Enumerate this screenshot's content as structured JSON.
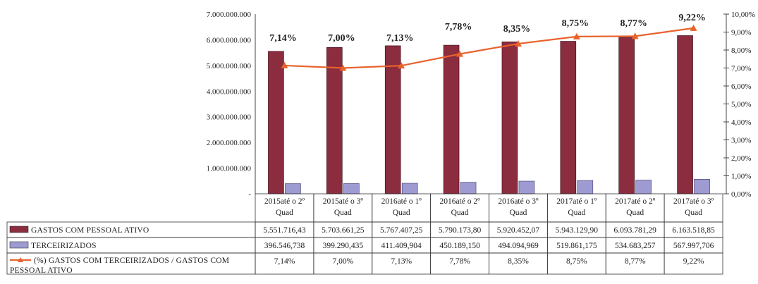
{
  "chart_data": {
    "type": "bar",
    "categories": [
      [
        "2015até o 2º",
        "Quad"
      ],
      [
        "2015até o 3º",
        "Quad"
      ],
      [
        "2016até o 1º",
        "Quad"
      ],
      [
        "2016até o 2º",
        "Quad"
      ],
      [
        "2016até o 3º",
        "Quad"
      ],
      [
        "2017até o 1º",
        "Quad"
      ],
      [
        "2017até o 2º",
        "Quad"
      ],
      [
        "2017até o 3º",
        "Quad"
      ]
    ],
    "series": [
      {
        "name": "GASTOS COM PESSOAL ATIVO",
        "type": "bar",
        "axis": "left",
        "color": "#8b2c3f",
        "values": [
          5551716.43,
          5703661.25,
          5767407.25,
          5790173.8,
          5920452.07,
          5943129.9,
          6093781.29,
          6163518.85
        ],
        "table_values": [
          "5.551.716,43",
          "5.703.661,25",
          "5.767.407,25",
          "5.790.173,80",
          "5.920.452,07",
          "5.943.129,90",
          "6.093.781,29",
          "6.163.518,85"
        ]
      },
      {
        "name": "TERCEIRIZADOS",
        "type": "bar",
        "axis": "left",
        "color": "#9d9bd2",
        "values": [
          396546.738,
          399290.435,
          411409.904,
          450189.15,
          494094.969,
          519861.175,
          534683.257,
          567997.706
        ],
        "table_values": [
          "396.546,738",
          "399.290,435",
          "411.409,904",
          "450.189,150",
          "494.094,969",
          "519.861,175",
          "534.683,257",
          "567.997,706"
        ]
      },
      {
        "name": "(%) GASTOS COM TERCEIRIZADOS / GASTOS COM PESSOAL ATIVO",
        "name_lines": [
          "(%) GASTOS COM TERCEIRIZADOS / GASTOS COM",
          "PESSOAL ATIVO"
        ],
        "type": "line",
        "axis": "right",
        "color": "#e8622c",
        "values": [
          7.14,
          7.0,
          7.13,
          7.78,
          8.35,
          8.75,
          8.77,
          9.22
        ],
        "table_values": [
          "7,14%",
          "7,00%",
          "7,13%",
          "7,78%",
          "8,35%",
          "8,75%",
          "8,77%",
          "9,22%"
        ],
        "data_labels": [
          "7,14%",
          "7,00%",
          "7,13%",
          "7,78%",
          "8,35%",
          "8,75%",
          "8,77%",
          "9,22%"
        ]
      }
    ],
    "left_axis": {
      "ylim": [
        0,
        7000000000
      ],
      "tick_labels": [
        "-",
        "1.000.000.000",
        "2.000.000.000",
        "3.000.000.000",
        "4.000.000.000",
        "5.000.000.000",
        "6.000.000.000",
        "7.000.000.000"
      ]
    },
    "right_axis": {
      "ylim": [
        0,
        10
      ],
      "tick_labels": [
        "0,00%",
        "1,00%",
        "2,00%",
        "3,00%",
        "4,00%",
        "5,00%",
        "6,00%",
        "7,00%",
        "8,00%",
        "9,00%",
        "10,00%"
      ]
    },
    "legend_placement": "data-table-below",
    "grid": false
  }
}
